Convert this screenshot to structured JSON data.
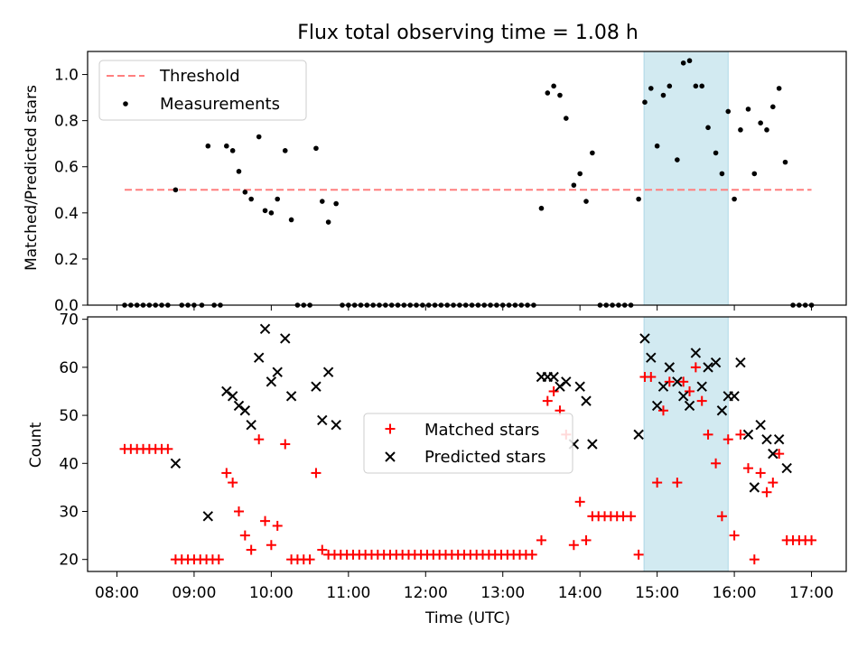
{
  "title": "Flux total observing time = 1.08 h",
  "colors": {
    "threshold": "#ff7f7f",
    "measurement": "#000000",
    "matched": "#ff0000",
    "predicted": "#000000",
    "highlight": "#add8e6"
  },
  "chart_data": [
    {
      "type": "scatter",
      "ylabel": "Matched/Predicted stars",
      "ylim": [
        0,
        1.1
      ],
      "yticks": [
        0.0,
        0.2,
        0.4,
        0.6,
        0.8,
        1.0
      ],
      "ytick_labels": [
        "0.0",
        "0.2",
        "0.4",
        "0.6",
        "0.8",
        "1.0"
      ],
      "xlim": [
        7.62,
        17.45
      ],
      "highlight_span": [
        14.83,
        15.92
      ],
      "legend": {
        "position": "top-left",
        "threshold_label": "Threshold",
        "measurements_label": "Measurements"
      },
      "threshold": {
        "value": 0.5,
        "x": [
          8.1,
          17.0
        ]
      },
      "measurements": [
        [
          8.1,
          0
        ],
        [
          8.18,
          0
        ],
        [
          8.26,
          0
        ],
        [
          8.34,
          0
        ],
        [
          8.42,
          0
        ],
        [
          8.5,
          0
        ],
        [
          8.58,
          0
        ],
        [
          8.66,
          0
        ],
        [
          8.76,
          0.5
        ],
        [
          8.84,
          0
        ],
        [
          8.92,
          0
        ],
        [
          9.0,
          0
        ],
        [
          9.1,
          0
        ],
        [
          9.18,
          0.69
        ],
        [
          9.26,
          0
        ],
        [
          9.34,
          0
        ],
        [
          9.42,
          0.69
        ],
        [
          9.5,
          0.67
        ],
        [
          9.58,
          0.58
        ],
        [
          9.66,
          0.49
        ],
        [
          9.74,
          0.46
        ],
        [
          9.84,
          0.73
        ],
        [
          9.92,
          0.41
        ],
        [
          10.0,
          0.4
        ],
        [
          10.08,
          0.46
        ],
        [
          10.18,
          0.67
        ],
        [
          10.26,
          0.37
        ],
        [
          10.34,
          0
        ],
        [
          10.42,
          0
        ],
        [
          10.5,
          0
        ],
        [
          10.58,
          0.68
        ],
        [
          10.66,
          0.45
        ],
        [
          10.74,
          0.36
        ],
        [
          10.84,
          0.44
        ],
        [
          10.92,
          0
        ],
        [
          11.0,
          0
        ],
        [
          11.08,
          0
        ],
        [
          11.16,
          0
        ],
        [
          11.24,
          0
        ],
        [
          11.32,
          0
        ],
        [
          11.4,
          0
        ],
        [
          11.48,
          0
        ],
        [
          11.56,
          0
        ],
        [
          11.64,
          0
        ],
        [
          11.72,
          0
        ],
        [
          11.8,
          0
        ],
        [
          11.88,
          0
        ],
        [
          11.96,
          0
        ],
        [
          12.04,
          0
        ],
        [
          12.12,
          0
        ],
        [
          12.2,
          0
        ],
        [
          12.28,
          0
        ],
        [
          12.36,
          0
        ],
        [
          12.44,
          0
        ],
        [
          12.52,
          0
        ],
        [
          12.6,
          0
        ],
        [
          12.68,
          0
        ],
        [
          12.76,
          0
        ],
        [
          12.84,
          0
        ],
        [
          12.92,
          0
        ],
        [
          13.0,
          0
        ],
        [
          13.08,
          0
        ],
        [
          13.16,
          0
        ],
        [
          13.24,
          0
        ],
        [
          13.32,
          0
        ],
        [
          13.4,
          0
        ],
        [
          13.5,
          0.42
        ],
        [
          13.58,
          0.92
        ],
        [
          13.66,
          0.95
        ],
        [
          13.74,
          0.91
        ],
        [
          13.82,
          0.81
        ],
        [
          13.92,
          0.52
        ],
        [
          14.0,
          0.57
        ],
        [
          14.08,
          0.45
        ],
        [
          14.16,
          0.66
        ],
        [
          14.26,
          0
        ],
        [
          14.34,
          0
        ],
        [
          14.42,
          0
        ],
        [
          14.5,
          0
        ],
        [
          14.58,
          0
        ],
        [
          14.66,
          0
        ],
        [
          14.76,
          0.46
        ],
        [
          14.84,
          0.88
        ],
        [
          14.92,
          0.94
        ],
        [
          15.0,
          0.69
        ],
        [
          15.08,
          0.91
        ],
        [
          15.16,
          0.95
        ],
        [
          15.26,
          0.63
        ],
        [
          15.34,
          1.05
        ],
        [
          15.42,
          1.06
        ],
        [
          15.5,
          0.95
        ],
        [
          15.58,
          0.95
        ],
        [
          15.66,
          0.77
        ],
        [
          15.76,
          0.66
        ],
        [
          15.84,
          0.57
        ],
        [
          15.92,
          0.84
        ],
        [
          16.0,
          0.46
        ],
        [
          16.08,
          0.76
        ],
        [
          16.18,
          0.85
        ],
        [
          16.26,
          0.57
        ],
        [
          16.34,
          0.79
        ],
        [
          16.42,
          0.76
        ],
        [
          16.5,
          0.86
        ],
        [
          16.58,
          0.94
        ],
        [
          16.66,
          0.62
        ],
        [
          16.76,
          0
        ],
        [
          16.84,
          0
        ],
        [
          16.92,
          0
        ],
        [
          17.0,
          0
        ]
      ]
    },
    {
      "type": "scatter",
      "xlabel": "Time (UTC)",
      "ylabel": "Count",
      "ylim": [
        17.5,
        70.5
      ],
      "yticks": [
        20,
        30,
        40,
        50,
        60,
        70
      ],
      "ytick_labels": [
        "20",
        "30",
        "40",
        "50",
        "60",
        "70"
      ],
      "xlim": [
        7.62,
        17.45
      ],
      "xticks": [
        8,
        9,
        10,
        11,
        12,
        13,
        14,
        15,
        16,
        17
      ],
      "xtick_labels": [
        "08:00",
        "09:00",
        "10:00",
        "11:00",
        "12:00",
        "13:00",
        "14:00",
        "15:00",
        "16:00",
        "17:00"
      ],
      "highlight_span": [
        14.83,
        15.92
      ],
      "legend": {
        "position": "center",
        "matched_label": "Matched stars",
        "predicted_label": "Predicted stars"
      },
      "matched": [
        [
          8.1,
          43
        ],
        [
          8.18,
          43
        ],
        [
          8.26,
          43
        ],
        [
          8.34,
          43
        ],
        [
          8.42,
          43
        ],
        [
          8.5,
          43
        ],
        [
          8.58,
          43
        ],
        [
          8.66,
          43
        ],
        [
          8.76,
          20
        ],
        [
          8.84,
          20
        ],
        [
          8.92,
          20
        ],
        [
          9.0,
          20
        ],
        [
          9.08,
          20
        ],
        [
          9.16,
          20
        ],
        [
          9.24,
          20
        ],
        [
          9.32,
          20
        ],
        [
          9.42,
          38
        ],
        [
          9.5,
          36
        ],
        [
          9.58,
          30
        ],
        [
          9.66,
          25
        ],
        [
          9.74,
          22
        ],
        [
          9.84,
          45
        ],
        [
          9.92,
          28
        ],
        [
          10.0,
          23
        ],
        [
          10.08,
          27
        ],
        [
          10.18,
          44
        ],
        [
          10.26,
          20
        ],
        [
          10.34,
          20
        ],
        [
          10.42,
          20
        ],
        [
          10.5,
          20
        ],
        [
          10.58,
          38
        ],
        [
          10.66,
          22
        ],
        [
          10.74,
          21
        ],
        [
          10.82,
          21
        ],
        [
          10.9,
          21
        ],
        [
          10.98,
          21
        ],
        [
          11.06,
          21
        ],
        [
          11.14,
          21
        ],
        [
          11.22,
          21
        ],
        [
          11.3,
          21
        ],
        [
          11.38,
          21
        ],
        [
          11.46,
          21
        ],
        [
          11.54,
          21
        ],
        [
          11.62,
          21
        ],
        [
          11.7,
          21
        ],
        [
          11.78,
          21
        ],
        [
          11.86,
          21
        ],
        [
          11.94,
          21
        ],
        [
          12.02,
          21
        ],
        [
          12.1,
          21
        ],
        [
          12.18,
          21
        ],
        [
          12.26,
          21
        ],
        [
          12.34,
          21
        ],
        [
          12.42,
          21
        ],
        [
          12.5,
          21
        ],
        [
          12.58,
          21
        ],
        [
          12.66,
          21
        ],
        [
          12.74,
          21
        ],
        [
          12.82,
          21
        ],
        [
          12.9,
          21
        ],
        [
          12.98,
          21
        ],
        [
          13.06,
          21
        ],
        [
          13.14,
          21
        ],
        [
          13.22,
          21
        ],
        [
          13.3,
          21
        ],
        [
          13.38,
          21
        ],
        [
          13.5,
          24
        ],
        [
          13.58,
          53
        ],
        [
          13.66,
          55
        ],
        [
          13.74,
          51
        ],
        [
          13.82,
          46
        ],
        [
          13.92,
          23
        ],
        [
          14.0,
          32
        ],
        [
          14.08,
          24
        ],
        [
          14.16,
          29
        ],
        [
          14.24,
          29
        ],
        [
          14.32,
          29
        ],
        [
          14.4,
          29
        ],
        [
          14.48,
          29
        ],
        [
          14.56,
          29
        ],
        [
          14.66,
          29
        ],
        [
          14.76,
          21
        ],
        [
          14.84,
          58
        ],
        [
          14.92,
          58
        ],
        [
          15.0,
          36
        ],
        [
          15.08,
          51
        ],
        [
          15.16,
          57
        ],
        [
          15.26,
          36
        ],
        [
          15.34,
          57
        ],
        [
          15.42,
          55
        ],
        [
          15.5,
          60
        ],
        [
          15.58,
          53
        ],
        [
          15.66,
          46
        ],
        [
          15.76,
          40
        ],
        [
          15.84,
          29
        ],
        [
          15.92,
          45
        ],
        [
          16.0,
          25
        ],
        [
          16.08,
          46
        ],
        [
          16.18,
          39
        ],
        [
          16.26,
          20
        ],
        [
          16.34,
          38
        ],
        [
          16.42,
          34
        ],
        [
          16.5,
          36
        ],
        [
          16.58,
          42
        ],
        [
          16.68,
          24
        ],
        [
          16.76,
          24
        ],
        [
          16.84,
          24
        ],
        [
          16.92,
          24
        ],
        [
          17.0,
          24
        ]
      ],
      "predicted": [
        [
          8.76,
          40
        ],
        [
          9.18,
          29
        ],
        [
          9.42,
          55
        ],
        [
          9.5,
          54
        ],
        [
          9.58,
          52
        ],
        [
          9.66,
          51
        ],
        [
          9.74,
          48
        ],
        [
          9.84,
          62
        ],
        [
          9.92,
          68
        ],
        [
          10.0,
          57
        ],
        [
          10.08,
          59
        ],
        [
          10.18,
          66
        ],
        [
          10.26,
          54
        ],
        [
          10.58,
          56
        ],
        [
          10.66,
          49
        ],
        [
          10.74,
          59
        ],
        [
          10.84,
          48
        ],
        [
          13.5,
          58
        ],
        [
          13.58,
          58
        ],
        [
          13.66,
          58
        ],
        [
          13.74,
          56
        ],
        [
          13.82,
          57
        ],
        [
          13.92,
          44
        ],
        [
          14.0,
          56
        ],
        [
          14.08,
          53
        ],
        [
          14.16,
          44
        ],
        [
          14.76,
          46
        ],
        [
          14.84,
          66
        ],
        [
          14.92,
          62
        ],
        [
          15.0,
          52
        ],
        [
          15.08,
          56
        ],
        [
          15.16,
          60
        ],
        [
          15.26,
          57
        ],
        [
          15.34,
          54
        ],
        [
          15.42,
          52
        ],
        [
          15.5,
          63
        ],
        [
          15.58,
          56
        ],
        [
          15.66,
          60
        ],
        [
          15.76,
          61
        ],
        [
          15.84,
          51
        ],
        [
          15.92,
          54
        ],
        [
          16.0,
          54
        ],
        [
          16.08,
          61
        ],
        [
          16.18,
          46
        ],
        [
          16.26,
          35
        ],
        [
          16.34,
          48
        ],
        [
          16.42,
          45
        ],
        [
          16.5,
          42
        ],
        [
          16.58,
          45
        ],
        [
          16.68,
          39
        ]
      ]
    }
  ]
}
